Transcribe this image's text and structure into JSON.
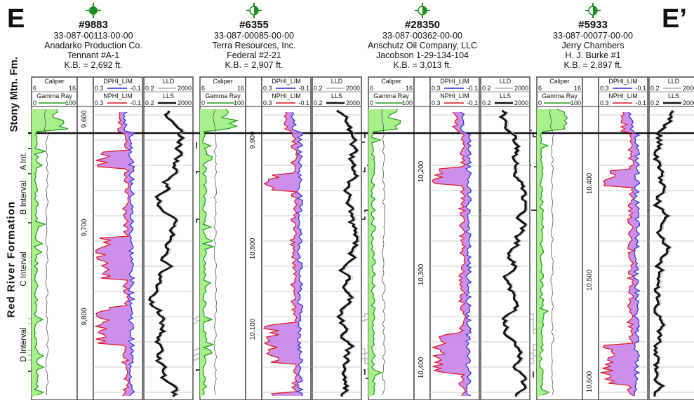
{
  "section": {
    "left_label": "E",
    "right_label": "E’"
  },
  "wells": [
    {
      "number": "#9883",
      "api": "33-087-00113-00-00",
      "operator": "Anadarko Production Co.",
      "name": "Tennant #A-1",
      "kb": "K.B. = 2,692 ft.",
      "symbol": "oil-well-icon",
      "depths": [
        "9,600",
        "9,700",
        "9,800"
      ]
    },
    {
      "number": "#6355",
      "api": "33-087-00085-00-00",
      "operator": "Terra Resources, Inc.",
      "name": "Federal #2-21",
      "kb": "K.B. = 2,907 ft.",
      "symbol": "dry-hole-icon",
      "depths": [
        "9,900",
        "10,500",
        "10,100"
      ]
    },
    {
      "number": "#28350",
      "api": "33-087-00362-00-00",
      "operator": "Anschutz Oil Company, LLC",
      "name": "Jacobson 1-29-134-104",
      "kb": "K.B. = 3,013 ft.",
      "symbol": "dry-hole-icon",
      "depths": [
        "10,200",
        "10,300",
        "10,400"
      ]
    },
    {
      "number": "#5933",
      "api": "33-087-00077-00-00",
      "operator": "Jerry Chambers",
      "name": "H. J. Burke #1",
      "kb": "K.B. = 2,897 ft.",
      "symbol": "dry-hole-icon",
      "depths": [
        "10,400",
        "10,500",
        "10,600"
      ]
    }
  ],
  "tracks": {
    "caliper": {
      "title": "Caliper",
      "min": "6",
      "max": "16"
    },
    "gamma": {
      "title": "Gamma Ray",
      "min": "0",
      "max": "100"
    },
    "dphi": {
      "title": "DPHI_LIM",
      "min": "0.3",
      "max": "-0.1"
    },
    "nphi": {
      "title": "NPHI_LIM",
      "min": "0.3",
      "max": "-0.1"
    },
    "lld": {
      "title": "LLD",
      "min": "0.2",
      "max": "2000"
    },
    "lls": {
      "title": "LLS",
      "min": "0.2",
      "max": "2000"
    }
  },
  "formations": {
    "stony": "Stony Mtn. Fm.",
    "red_river": "Red River Formation",
    "intervals": [
      "A Int.",
      "B Interval",
      "C Interval",
      "D Interval"
    ]
  },
  "colors": {
    "gamma_fill": "#a8f08a",
    "gamma_line": "#1a9a1a",
    "dphi": "#1e2fe0",
    "nphi": "#e0141e",
    "crossover": "#c47be6",
    "well_symbol": "#1c8f1c"
  }
}
